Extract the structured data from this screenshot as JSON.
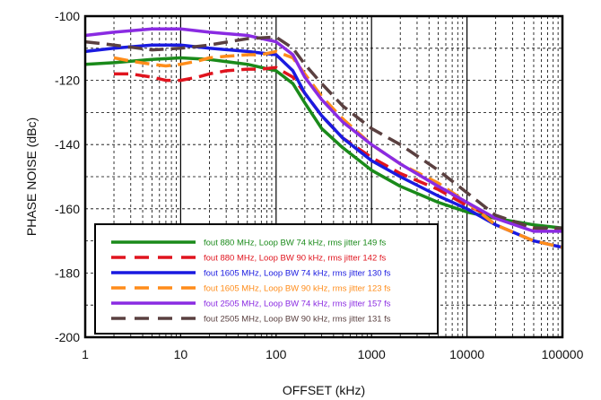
{
  "chart_data": {
    "type": "line",
    "title": "",
    "xlabel": "OFFSET (kHz)",
    "ylabel": "PHASE NOISE (dBc)",
    "x_scale": "log",
    "xlim": [
      1,
      100000
    ],
    "ylim": [
      -200,
      -100
    ],
    "x_ticks": [
      1,
      10,
      100,
      1000,
      10000,
      100000
    ],
    "x_tick_labels": [
      "1",
      "10",
      "100",
      "1000",
      "10000",
      "100000"
    ],
    "y_ticks": [
      -200,
      -180,
      -160,
      -140,
      -120,
      -100
    ],
    "y_tick_labels": [
      "-200",
      "-180",
      "-160",
      "-140",
      "-120",
      "-100"
    ],
    "grid": true,
    "legend_position": "bottom-left",
    "series": [
      {
        "name": "fout 880 MHz, Loop BW 74 kHz, rms jitter 149 fs",
        "color": "#1a8a1a",
        "style": "solid",
        "x": [
          1,
          2,
          5,
          10,
          20,
          50,
          100,
          150,
          200,
          300,
          500,
          1000,
          2000,
          5000,
          10000,
          20000,
          50000,
          100000
        ],
        "y": [
          -115,
          -114.5,
          -113.5,
          -113,
          -113.5,
          -115,
          -117,
          -121,
          -127,
          -135,
          -141,
          -148,
          -153,
          -158,
          -161,
          -163,
          -165,
          -166
        ]
      },
      {
        "name": "fout 880 MHz, Loop BW 90 kHz, rms jitter 142 fs",
        "color": "#e0141e",
        "style": "dashed",
        "x": [
          2,
          3,
          5,
          7,
          10,
          15,
          20,
          30,
          50,
          70,
          100,
          150,
          200,
          300,
          500,
          1000,
          2000,
          5000,
          10000,
          20000,
          50000,
          100000
        ],
        "y": [
          -118,
          -118,
          -119,
          -120,
          -120,
          -119,
          -118,
          -117,
          -116.5,
          -116.5,
          -116,
          -119,
          -124,
          -131,
          -138,
          -144,
          -149,
          -154,
          -159,
          -163,
          -166,
          -167
        ]
      },
      {
        "name": "fout 1605 MHz, Loop BW 74 kHz, rms jitter 130 fs",
        "color": "#1a1ae0",
        "style": "solid",
        "x": [
          1,
          2,
          5,
          10,
          20,
          50,
          100,
          150,
          200,
          300,
          500,
          1000,
          2000,
          5000,
          10000,
          20000,
          50000,
          100000
        ],
        "y": [
          -111,
          -110,
          -109,
          -109,
          -110,
          -111,
          -112,
          -117,
          -124,
          -131,
          -138,
          -145,
          -150,
          -156,
          -160,
          -165,
          -170,
          -172
        ]
      },
      {
        "name": "fout 1605 MHz, Loop BW 90 kHz, rms jitter 123 fs",
        "color": "#ff8c1a",
        "style": "dashed",
        "x": [
          2,
          3,
          5,
          7,
          10,
          15,
          20,
          30,
          50,
          70,
          100,
          150,
          200,
          300,
          500,
          1000,
          2000,
          5000,
          10000,
          20000,
          50000,
          100000
        ],
        "y": [
          -113,
          -114,
          -115,
          -115.5,
          -115,
          -114,
          -113,
          -112.5,
          -112,
          -112,
          -111,
          -113,
          -118,
          -125,
          -132,
          -140,
          -146,
          -152,
          -158,
          -165,
          -170,
          -172
        ]
      },
      {
        "name": "fout 2505 MHz, Loop BW 74 kHz, rms jitter 157 fs",
        "color": "#8a2be2",
        "style": "solid",
        "x": [
          1,
          2,
          5,
          10,
          20,
          50,
          100,
          150,
          200,
          300,
          500,
          1000,
          2000,
          5000,
          10000,
          20000,
          50000,
          100000
        ],
        "y": [
          -106,
          -105,
          -104,
          -104,
          -105,
          -106,
          -108,
          -112,
          -119,
          -126,
          -133,
          -140,
          -146,
          -153,
          -158,
          -163,
          -167,
          -167
        ]
      },
      {
        "name": "fout 2505 MHz, Loop BW 90 kHz, rms jitter 131 fs",
        "color": "#5a4040",
        "style": "dashed",
        "x": [
          1,
          2,
          5,
          10,
          20,
          50,
          100,
          150,
          200,
          300,
          500,
          1000,
          2000,
          5000,
          10000,
          20000,
          50000,
          100000
        ],
        "y": [
          -108,
          -109,
          -110.5,
          -110,
          -109,
          -107,
          -106.5,
          -110,
          -115,
          -121,
          -128,
          -135,
          -140,
          -148,
          -155,
          -162,
          -166,
          -166
        ]
      }
    ]
  }
}
